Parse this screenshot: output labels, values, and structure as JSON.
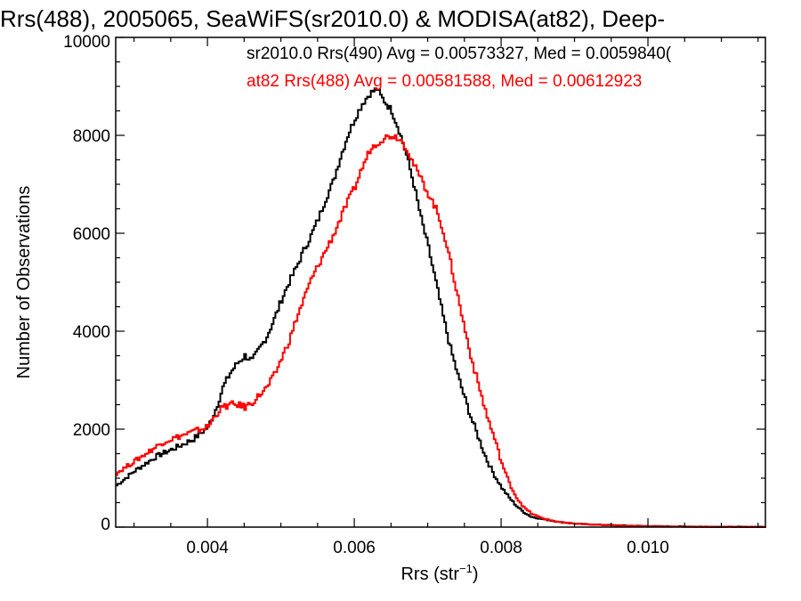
{
  "chart_data": {
    "type": "line",
    "title": "Rrs(488), 2005065, SeaWiFS(sr2010.0) & MODISA(at82), Deep-",
    "xlabel": "Rrs (str",
    "xlabel_sup": "−1",
    "xlabel_suffix": ")",
    "ylabel": "Number of Observations",
    "xlim": [
      0.00275,
      0.0116
    ],
    "ylim": [
      0,
      10000
    ],
    "x_ticks": [
      0.004,
      0.006,
      0.008,
      0.01
    ],
    "x_tick_labels": [
      "0.004",
      "0.006",
      "0.008",
      "0.010"
    ],
    "y_ticks": [
      0,
      2000,
      4000,
      6000,
      8000,
      10000
    ],
    "y_tick_labels": [
      "0",
      "2000",
      "4000",
      "6000",
      "8000",
      "10000"
    ],
    "grid": false,
    "annotations": [
      {
        "text": "sr2010.0 Rrs(490) Avg = 0.00573327, Med = 0.0059840(",
        "color": "#000000"
      },
      {
        "text": "at82 Rrs(488) Avg = 0.00581588, Med = 0.00612923",
        "color": "#ff0000"
      }
    ],
    "series": [
      {
        "color": "#000000",
        "x": [
          0.00275,
          0.003,
          0.0033,
          0.0036,
          0.0038,
          0.004,
          0.0041,
          0.0042,
          0.0043,
          0.0044,
          0.0045,
          0.0046,
          0.0047,
          0.0048,
          0.0049,
          0.005,
          0.0051,
          0.0052,
          0.0053,
          0.0054,
          0.0055,
          0.0056,
          0.0057,
          0.0058,
          0.0059,
          0.006,
          0.0061,
          0.0062,
          0.0063,
          0.00635,
          0.0064,
          0.0065,
          0.0066,
          0.0067,
          0.0068,
          0.0069,
          0.007,
          0.0071,
          0.0072,
          0.0073,
          0.0074,
          0.0075,
          0.0076,
          0.0077,
          0.0078,
          0.0079,
          0.008,
          0.0081,
          0.0082,
          0.0083,
          0.0084,
          0.0086,
          0.0088,
          0.009,
          0.0093,
          0.0096,
          0.01,
          0.0105,
          0.011,
          0.0116
        ],
        "values": [
          850,
          1150,
          1450,
          1650,
          1800,
          2050,
          2400,
          2850,
          3150,
          3350,
          3500,
          3400,
          3650,
          3900,
          4250,
          4650,
          5000,
          5300,
          5650,
          5950,
          6300,
          6700,
          7050,
          7550,
          8000,
          8350,
          8650,
          8850,
          8950,
          8800,
          8700,
          8500,
          8100,
          7600,
          7000,
          6300,
          5700,
          5000,
          4300,
          3650,
          3100,
          2600,
          2150,
          1750,
          1350,
          1050,
          800,
          600,
          430,
          300,
          210,
          150,
          100,
          70,
          50,
          35,
          20,
          12,
          6,
          4
        ]
      },
      {
        "color": "#ff0000",
        "x": [
          0.00275,
          0.003,
          0.0032,
          0.0034,
          0.0036,
          0.0038,
          0.004,
          0.0041,
          0.0042,
          0.0043,
          0.0044,
          0.0045,
          0.0046,
          0.0047,
          0.0048,
          0.0049,
          0.005,
          0.0051,
          0.0052,
          0.0053,
          0.0054,
          0.0055,
          0.0056,
          0.0057,
          0.0058,
          0.0059,
          0.006,
          0.0061,
          0.0062,
          0.0063,
          0.0064,
          0.0065,
          0.0066,
          0.0067,
          0.0068,
          0.0069,
          0.007,
          0.0071,
          0.0072,
          0.0073,
          0.0074,
          0.0075,
          0.0076,
          0.0077,
          0.0078,
          0.0079,
          0.008,
          0.0081,
          0.0082,
          0.0083,
          0.0084,
          0.0085,
          0.0086,
          0.0088,
          0.009,
          0.0093,
          0.0096,
          0.01,
          0.0105,
          0.011,
          0.0116
        ],
        "values": [
          1100,
          1350,
          1550,
          1750,
          1850,
          1950,
          2050,
          2300,
          2450,
          2500,
          2500,
          2450,
          2550,
          2700,
          2850,
          3100,
          3450,
          3800,
          4250,
          4650,
          5050,
          5350,
          5650,
          5950,
          6300,
          6650,
          6950,
          7350,
          7700,
          7850,
          7950,
          8000,
          7950,
          7750,
          7400,
          7100,
          6800,
          6500,
          6050,
          5400,
          4700,
          4000,
          3350,
          2800,
          2250,
          1800,
          1300,
          900,
          600,
          400,
          280,
          210,
          160,
          100,
          70,
          45,
          30,
          15,
          8,
          4,
          2
        ]
      }
    ]
  }
}
